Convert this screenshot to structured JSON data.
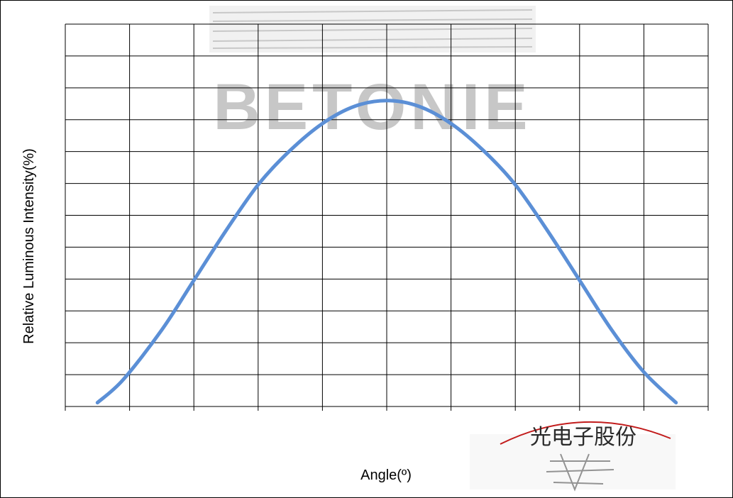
{
  "colors": {
    "curve": "#5b8fd6",
    "grid": "#000000",
    "stamp": "#c21c1c",
    "watermark": "#8a8a8a"
  },
  "watermark": {
    "text": "BETONIE"
  },
  "stamp": {
    "text": "光电子股份"
  },
  "chart_data": {
    "type": "line",
    "title": "",
    "xlabel": "Angle(º)",
    "ylabel": "Relative Luminous Intensity(%)",
    "xlim": [
      0,
      10
    ],
    "ylim": [
      0,
      10
    ],
    "grid": true,
    "x_tick_labels": [],
    "y_tick_labels": [],
    "series": [
      {
        "values": [
          [
            0.5,
            0.1
          ],
          [
            0.9,
            0.7
          ],
          [
            1.5,
            2.0
          ],
          [
            2.0,
            3.3
          ],
          [
            2.5,
            4.6
          ],
          [
            3.0,
            5.8
          ],
          [
            3.5,
            6.7
          ],
          [
            4.0,
            7.4
          ],
          [
            4.5,
            7.85
          ],
          [
            5.0,
            8.0
          ],
          [
            5.5,
            7.85
          ],
          [
            6.0,
            7.4
          ],
          [
            6.5,
            6.7
          ],
          [
            7.0,
            5.8
          ],
          [
            7.5,
            4.6
          ],
          [
            8.0,
            3.3
          ],
          [
            8.5,
            2.0
          ],
          [
            9.0,
            0.9
          ],
          [
            9.5,
            0.1
          ]
        ]
      }
    ]
  }
}
